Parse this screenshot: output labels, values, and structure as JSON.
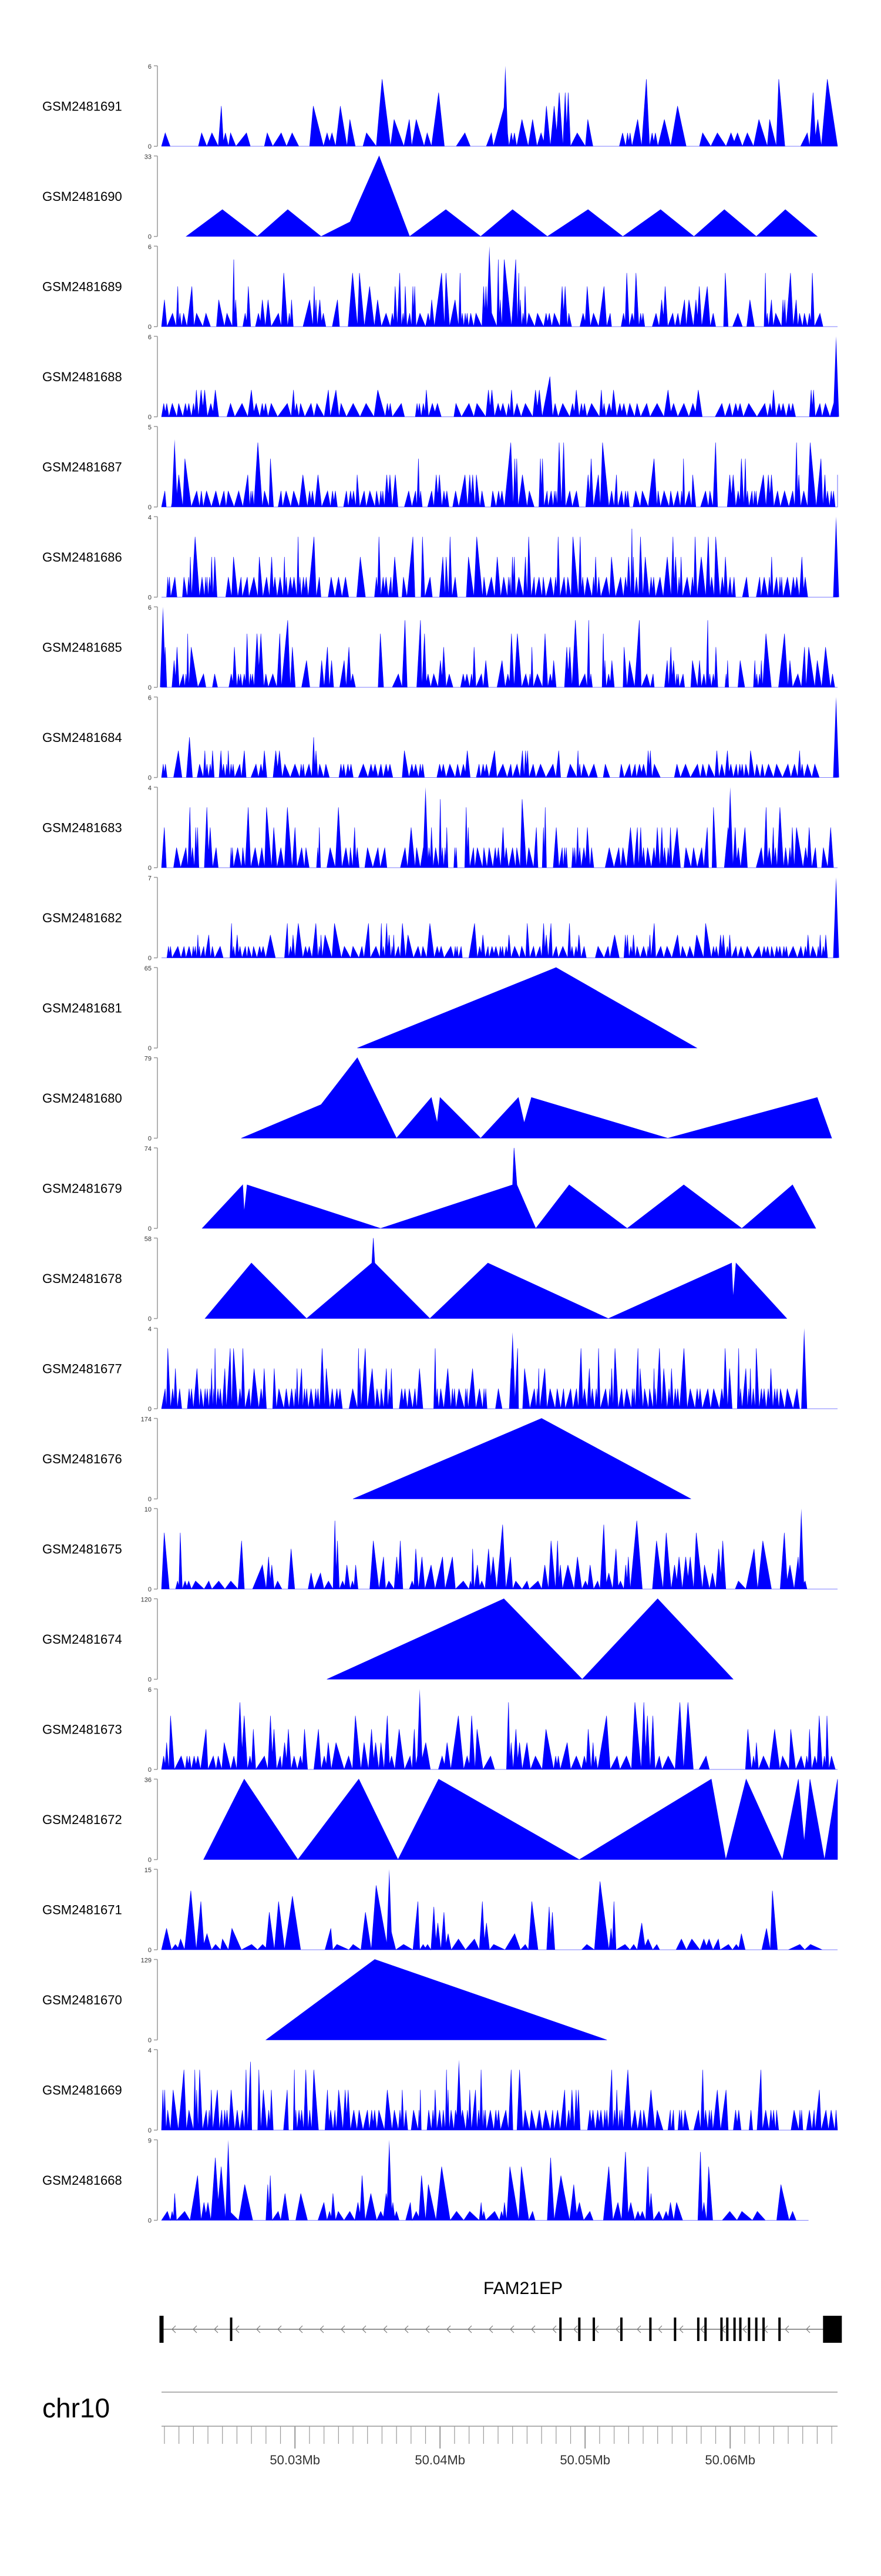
{
  "chart_data": {
    "type": "area",
    "chromosome": "chr10",
    "gene": {
      "name": "FAM21EP",
      "strand": "-",
      "start": 50020800,
      "end": 50067400,
      "exons": [
        50020800,
        50025600,
        50048300,
        50049600,
        50050600,
        50052500,
        50054500,
        50056200,
        50057800,
        50058300,
        50059400,
        50059800,
        50060300,
        50060700,
        50061300,
        50061800,
        50062300,
        50063400,
        50066400
      ]
    },
    "x_range": [
      50020800,
      50067400
    ],
    "x_ticks": [
      50021000,
      50022000,
      50023000,
      50024000,
      50025000,
      50026000,
      50027000,
      50028000,
      50029000,
      50030000,
      50031000,
      50032000,
      50033000,
      50034000,
      50035000,
      50036000,
      50037000,
      50038000,
      50039000,
      50040000,
      50041000,
      50042000,
      50043000,
      50044000,
      50045000,
      50046000,
      50047000,
      50048000,
      50049000,
      50050000,
      50051000,
      50052000,
      50053000,
      50054000,
      50055000,
      50056000,
      50057000,
      50058000,
      50059000,
      50060000,
      50061000,
      50062000,
      50063000,
      50064000,
      50065000,
      50066000,
      50067000
    ],
    "x_tick_labels": [
      {
        "pos": 50030000,
        "label": "50.03Mb"
      },
      {
        "pos": 50040000,
        "label": "50.04Mb"
      },
      {
        "pos": 50050000,
        "label": "50.05Mb"
      },
      {
        "pos": 50060000,
        "label": "50.06Mb"
      }
    ],
    "series": [
      {
        "name": "GSM2481691",
        "ymax": "6",
        "ymin": "0",
        "kind": "dense",
        "seed": 11,
        "density": 60,
        "max_value": 6,
        "coverage": [
          50020800,
          50067400
        ],
        "spikes": [
          {
            "x": 50044500,
            "y": 6
          }
        ]
      },
      {
        "name": "GSM2481690",
        "ymax": "33",
        "ymin": "0",
        "kind": "triangles",
        "max_value": 33,
        "points": [
          [
            50022500,
            0
          ],
          [
            50025000,
            11
          ],
          [
            50027400,
            0
          ],
          [
            50029500,
            11
          ],
          [
            50031800,
            0
          ],
          [
            50033800,
            6
          ],
          [
            50035800,
            33
          ],
          [
            50037900,
            0
          ],
          [
            50040400,
            11
          ],
          [
            50042800,
            0
          ],
          [
            50045000,
            11
          ],
          [
            50047400,
            0
          ],
          [
            50050200,
            11
          ],
          [
            50052600,
            0
          ],
          [
            50055200,
            11
          ],
          [
            50057500,
            0
          ],
          [
            50059600,
            11
          ],
          [
            50061800,
            0
          ],
          [
            50063800,
            11
          ],
          [
            50066000,
            0
          ]
        ]
      },
      {
        "name": "GSM2481689",
        "ymax": "6",
        "ymin": "0",
        "kind": "dense",
        "seed": 23,
        "density": 95,
        "max_value": 6,
        "coverage": [
          50020800,
          50067400
        ],
        "spikes": [
          {
            "x": 50043400,
            "y": 6
          }
        ]
      },
      {
        "name": "GSM2481688",
        "ymax": "6",
        "ymin": "0",
        "kind": "dense",
        "seed": 37,
        "density": 70,
        "max_value": 6,
        "low": true,
        "coverage": [
          50020800,
          50067400
        ],
        "spikes": [
          {
            "x": 50067300,
            "y": 6
          }
        ]
      },
      {
        "name": "GSM2481687",
        "ymax": "5",
        "ymin": "0",
        "kind": "dense",
        "seed": 41,
        "density": 110,
        "max_value": 5,
        "coverage": [
          50020800,
          50067400
        ],
        "spikes": [
          {
            "x": 50021700,
            "y": 4.2
          }
        ]
      },
      {
        "name": "GSM2481686",
        "ymax": "4",
        "ymin": "0",
        "kind": "dense",
        "seed": 53,
        "density": 105,
        "max_value": 4,
        "coverage": [
          50020800,
          50067400
        ],
        "spikes": [
          {
            "x": 50067300,
            "y": 4
          }
        ]
      },
      {
        "name": "GSM2481685",
        "ymax": "6",
        "ymin": "0",
        "kind": "dense",
        "seed": 67,
        "density": 100,
        "max_value": 6,
        "coverage": [
          50020800,
          50067400
        ],
        "spikes": [
          {
            "x": 50020900,
            "y": 6
          }
        ]
      },
      {
        "name": "GSM2481684",
        "ymax": "6",
        "ymin": "0",
        "kind": "dense",
        "seed": 79,
        "density": 95,
        "max_value": 6,
        "low": true,
        "coverage": [
          50020800,
          50067400
        ],
        "spikes": [
          {
            "x": 50067300,
            "y": 6
          }
        ]
      },
      {
        "name": "GSM2481683",
        "ymax": "4",
        "ymin": "0",
        "kind": "dense",
        "seed": 83,
        "density": 110,
        "max_value": 4,
        "coverage": [
          50020800,
          50067400
        ],
        "spikes": [
          {
            "x": 50039000,
            "y": 4
          },
          {
            "x": 50060000,
            "y": 4
          }
        ]
      },
      {
        "name": "GSM2481682",
        "ymax": "7",
        "ymin": "0",
        "kind": "dense",
        "seed": 97,
        "density": 100,
        "max_value": 7,
        "low": true,
        "coverage": [
          50020800,
          50067400
        ],
        "spikes": [
          {
            "x": 50067300,
            "y": 7
          }
        ]
      },
      {
        "name": "GSM2481681",
        "ymax": "65",
        "ymin": "0",
        "kind": "triangles",
        "max_value": 65,
        "points": [
          [
            50034300,
            0
          ],
          [
            50048000,
            65
          ],
          [
            50057700,
            0
          ]
        ]
      },
      {
        "name": "GSM2481680",
        "ymax": "79",
        "ymin": "0",
        "kind": "triangles",
        "max_value": 79,
        "points": [
          [
            50026300,
            0
          ],
          [
            50031800,
            33
          ],
          [
            50034300,
            79
          ],
          [
            50037000,
            0
          ],
          [
            50039400,
            40
          ],
          [
            50039800,
            15
          ],
          [
            50040000,
            40
          ],
          [
            50042800,
            0
          ],
          [
            50045400,
            40
          ],
          [
            50045800,
            15
          ],
          [
            50046300,
            40
          ],
          [
            50055700,
            0
          ],
          [
            50066000,
            40
          ],
          [
            50067000,
            0
          ]
        ]
      },
      {
        "name": "GSM2481679",
        "ymax": "74",
        "ymin": "0",
        "kind": "triangles",
        "max_value": 74,
        "points": [
          [
            50023600,
            0
          ],
          [
            50026400,
            40
          ],
          [
            50026500,
            15
          ],
          [
            50026700,
            40
          ],
          [
            50035900,
            0
          ],
          [
            50045000,
            40
          ],
          [
            50045100,
            74
          ],
          [
            50045300,
            40
          ],
          [
            50046600,
            0
          ],
          [
            50048900,
            40
          ],
          [
            50052900,
            0
          ],
          [
            50056800,
            40
          ],
          [
            50060800,
            0
          ],
          [
            50064300,
            40
          ],
          [
            50065900,
            0
          ]
        ]
      },
      {
        "name": "GSM2481678",
        "ymax": "58",
        "ymin": "0",
        "kind": "triangles",
        "max_value": 58,
        "points": [
          [
            50023800,
            0
          ],
          [
            50027000,
            40
          ],
          [
            50030800,
            0
          ],
          [
            50035300,
            40
          ],
          [
            50035400,
            58
          ],
          [
            50035500,
            40
          ],
          [
            50039300,
            0
          ],
          [
            50043300,
            40
          ],
          [
            50051600,
            0
          ],
          [
            50060100,
            40
          ],
          [
            50060200,
            15
          ],
          [
            50060400,
            40
          ],
          [
            50063900,
            0
          ]
        ]
      },
      {
        "name": "GSM2481677",
        "ymax": "4",
        "ymin": "0",
        "kind": "dense",
        "seed": 101,
        "density": 110,
        "max_value": 4,
        "coverage": [
          50020800,
          50067400
        ],
        "spikes": [
          {
            "x": 50065100,
            "y": 4
          },
          {
            "x": 50045000,
            "y": 3.8
          }
        ]
      },
      {
        "name": "GSM2481676",
        "ymax": "174",
        "ymin": "0",
        "kind": "triangles",
        "max_value": 174,
        "points": [
          [
            50034000,
            0
          ],
          [
            50047000,
            174
          ],
          [
            50057300,
            0
          ]
        ]
      },
      {
        "name": "GSM2481675",
        "ymax": "10",
        "ymin": "0",
        "kind": "dense",
        "seed": 113,
        "density": 70,
        "max_value": 10,
        "coverage": [
          50020800,
          50067400
        ],
        "spikes": [
          {
            "x": 50064900,
            "y": 10
          }
        ]
      },
      {
        "name": "GSM2481674",
        "ymax": "120",
        "ymin": "0",
        "kind": "triangles",
        "max_value": 120,
        "points": [
          [
            50032200,
            0
          ],
          [
            50044400,
            120
          ],
          [
            50049800,
            0
          ],
          [
            50055000,
            120
          ],
          [
            50060200,
            0
          ]
        ]
      },
      {
        "name": "GSM2481673",
        "ymax": "6",
        "ymin": "0",
        "kind": "dense",
        "seed": 127,
        "density": 75,
        "max_value": 6,
        "coverage": [
          50020800,
          50067400
        ],
        "spikes": [
          {
            "x": 50038600,
            "y": 6
          }
        ]
      },
      {
        "name": "GSM2481672",
        "ymax": "36",
        "ymin": "0",
        "kind": "triangles",
        "max_value": 36,
        "points": [
          [
            50023700,
            0
          ],
          [
            50026500,
            36
          ],
          [
            50030200,
            0
          ],
          [
            50034400,
            36
          ],
          [
            50037100,
            0
          ],
          [
            50039900,
            36
          ],
          [
            50049600,
            0
          ],
          [
            50058700,
            36
          ],
          [
            50059700,
            0
          ],
          [
            50061100,
            36
          ],
          [
            50063600,
            0
          ],
          [
            50064700,
            36
          ],
          [
            50065100,
            8
          ],
          [
            50065500,
            36
          ],
          [
            50066500,
            0
          ],
          [
            50067400,
            36
          ]
        ]
      },
      {
        "name": "GSM2481671",
        "ymax": "15",
        "ymin": "0",
        "kind": "dense",
        "seed": 131,
        "density": 55,
        "max_value": 15,
        "coverage": [
          50020800,
          50067400
        ],
        "spikes": [
          {
            "x": 50036500,
            "y": 15
          }
        ]
      },
      {
        "name": "GSM2481670",
        "ymax": "129",
        "ymin": "0",
        "kind": "triangles",
        "max_value": 129,
        "points": [
          [
            50028000,
            0
          ],
          [
            50035500,
            129
          ],
          [
            50051500,
            0
          ]
        ]
      },
      {
        "name": "GSM2481669",
        "ymax": "4",
        "ymin": "0",
        "kind": "dense",
        "seed": 139,
        "density": 120,
        "max_value": 4,
        "coverage": [
          50020800,
          50067400
        ],
        "spikes": [
          {
            "x": 50041300,
            "y": 3.5
          }
        ]
      },
      {
        "name": "GSM2481668",
        "ymax": "9",
        "ymin": "0",
        "kind": "dense",
        "seed": 149,
        "density": 60,
        "max_value": 9,
        "coverage": [
          50020800,
          50065400
        ],
        "spikes": [
          {
            "x": 50036500,
            "y": 9
          },
          {
            "x": 50025400,
            "y": 9
          }
        ]
      }
    ]
  }
}
